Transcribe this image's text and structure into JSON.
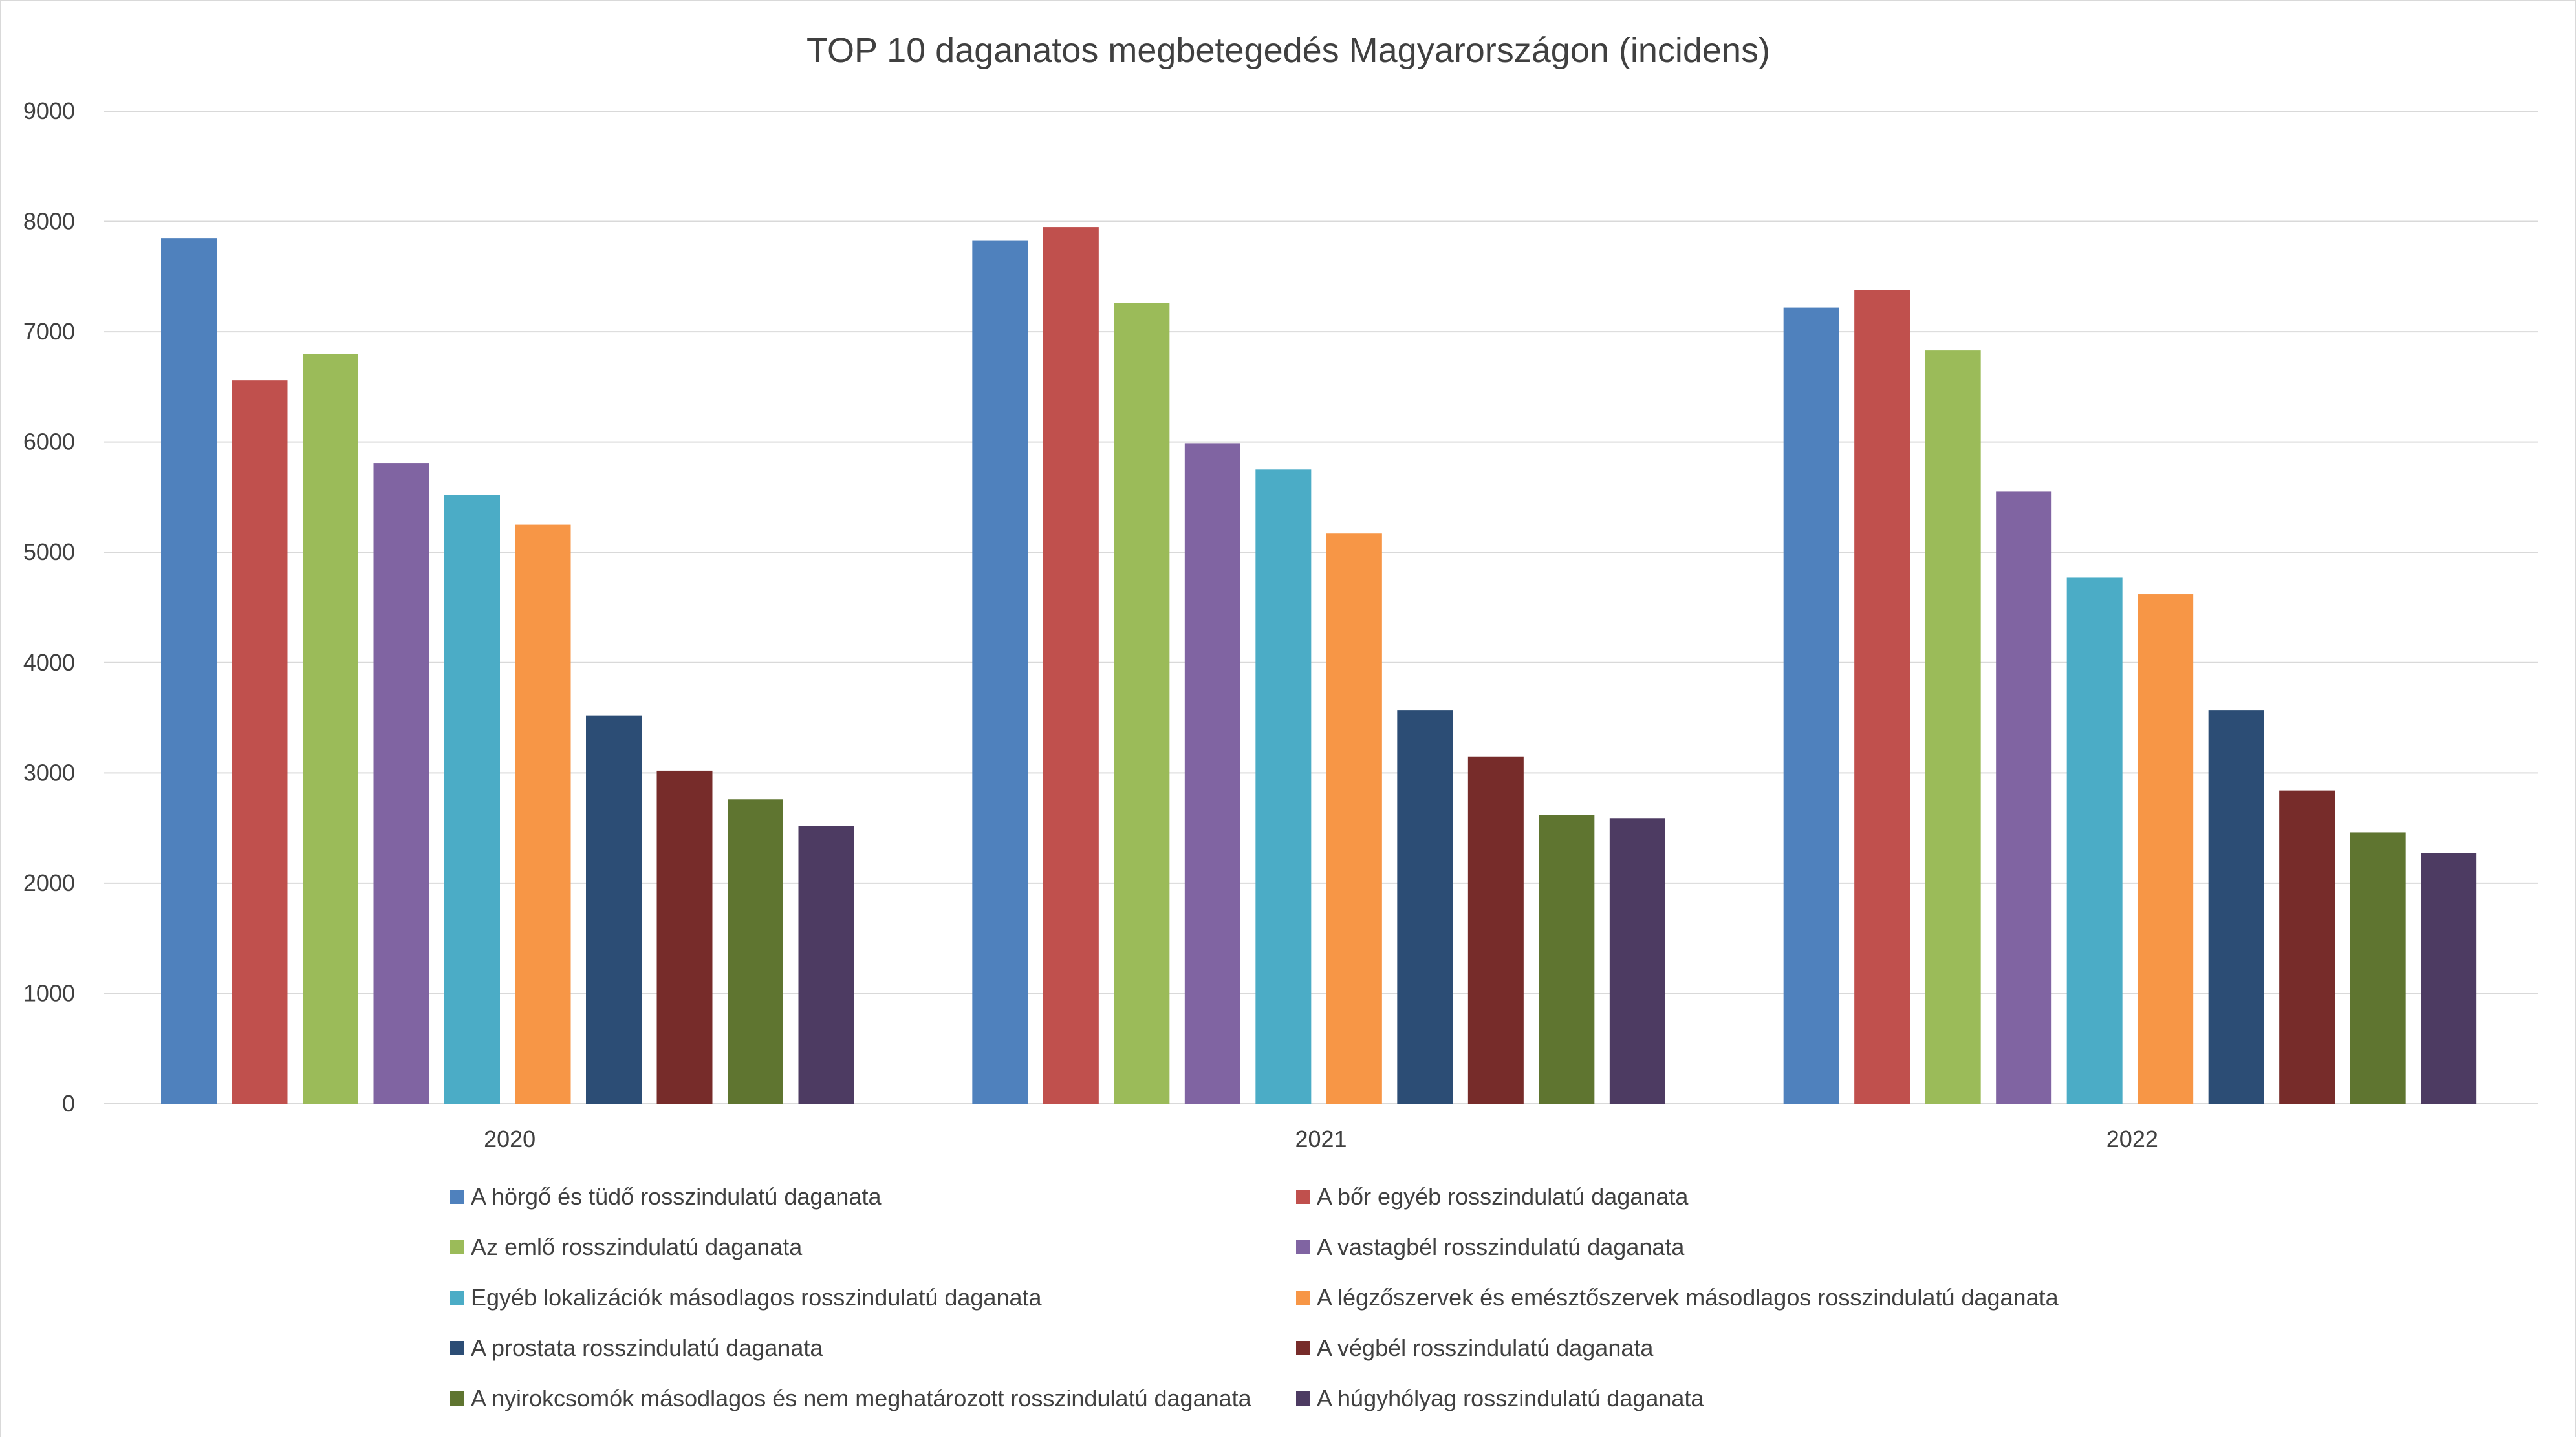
{
  "chart_data": {
    "type": "bar",
    "title": "TOP 10 daganatos megbetegedés Magyarországon (incidens)",
    "xlabel": "",
    "ylabel": "",
    "ylim": [
      0,
      9000
    ],
    "yticks": [
      0,
      1000,
      2000,
      3000,
      4000,
      5000,
      6000,
      7000,
      8000,
      9000
    ],
    "grid": true,
    "legend_position": "bottom",
    "categories": [
      "2020",
      "2021",
      "2022"
    ],
    "series": [
      {
        "name": "A hörgő és tüdő rosszindulatú daganata",
        "color": "#4F81BD",
        "values": [
          7850,
          7830,
          7220
        ]
      },
      {
        "name": "A bőr egyéb rosszindulatú daganata",
        "color": "#C0504D",
        "values": [
          6560,
          7950,
          7380
        ]
      },
      {
        "name": "Az emlő rosszindulatú daganata",
        "color": "#9BBB59",
        "values": [
          6800,
          7260,
          6830
        ]
      },
      {
        "name": "A vastagbél rosszindulatú daganata",
        "color": "#8064A2",
        "values": [
          5810,
          5990,
          5550
        ]
      },
      {
        "name": "Egyéb lokalizációk másodlagos rosszindulatú daganata",
        "color": "#4BACC6",
        "values": [
          5520,
          5750,
          4770
        ]
      },
      {
        "name": "A légzőszervek és emésztőszervek másodlagos rosszindulatú daganata",
        "color": "#F79646",
        "values": [
          5250,
          5170,
          4620
        ]
      },
      {
        "name": "A prostata rosszindulatú daganata",
        "color": "#2C4D75",
        "values": [
          3520,
          3570,
          3570
        ]
      },
      {
        "name": "A végbél rosszindulatú daganata",
        "color": "#772C2A",
        "values": [
          3020,
          3150,
          2840
        ]
      },
      {
        "name": "A nyirokcsomók másodlagos és nem meghatározott rosszindulatú daganata",
        "color": "#5F7530",
        "values": [
          2760,
          2620,
          2460
        ]
      },
      {
        "name": "A húgyhólyag rosszindulatú daganata",
        "color": "#4D3B62",
        "values": [
          2520,
          2590,
          2270
        ]
      }
    ]
  }
}
